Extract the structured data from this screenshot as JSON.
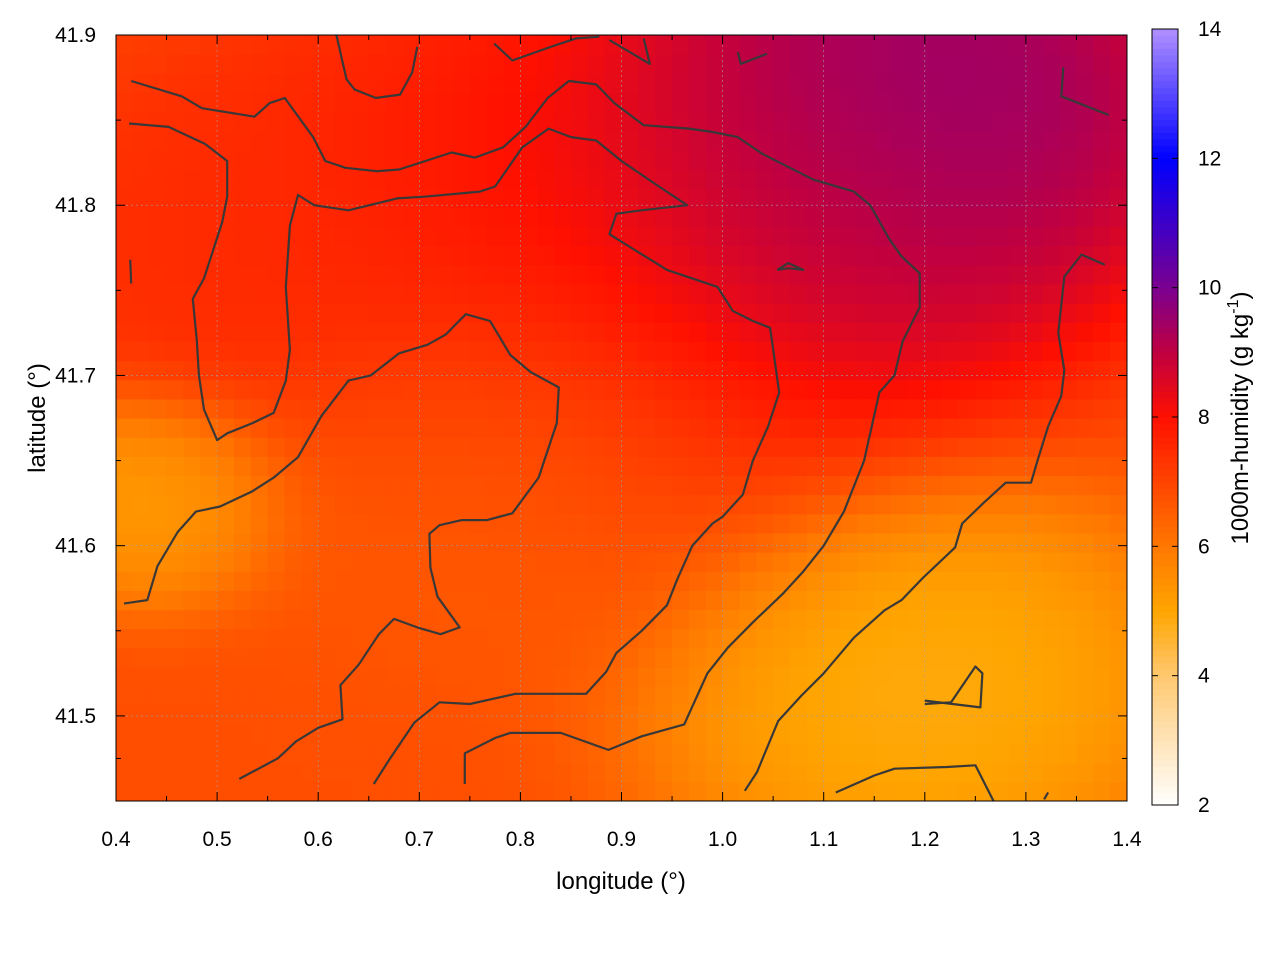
{
  "chart_data": {
    "type": "heatmap",
    "title": "",
    "xlabel": "longitude (°)",
    "ylabel": "latitude (°)",
    "colorbar_label": "1000m-humidity (g kg",
    "colorbar_label_sup": "-1",
    "colorbar_label_end": ")",
    "xlim": [
      0.4,
      1.4
    ],
    "ylim": [
      41.45,
      41.9
    ],
    "zlim": [
      2,
      14
    ],
    "x_ticks": [
      0.4,
      0.5,
      0.6,
      0.7,
      0.8,
      0.9,
      1.0,
      1.1,
      1.2,
      1.3,
      1.4
    ],
    "x_tick_labels": [
      "0.4",
      "0.5",
      "0.6",
      "0.7",
      "0.8",
      "0.9",
      "1.0",
      "1.1",
      "1.2",
      "1.3",
      "1.4"
    ],
    "y_ticks": [
      41.5,
      41.6,
      41.7,
      41.8,
      41.9
    ],
    "y_tick_labels": [
      "41.5",
      "41.6",
      "41.7",
      "41.8",
      "41.9"
    ],
    "z_ticks": [
      2,
      4,
      6,
      8,
      10,
      12,
      14
    ],
    "z_tick_labels": [
      "2",
      "4",
      "6",
      "8",
      "10",
      "12",
      "14"
    ],
    "grid": true,
    "colormap": [
      {
        "value": 2,
        "color": "#ffffff"
      },
      {
        "value": 4,
        "color": "#ffc870"
      },
      {
        "value": 5,
        "color": "#ffa500"
      },
      {
        "value": 6,
        "color": "#ff7800"
      },
      {
        "value": 7,
        "color": "#ff4400"
      },
      {
        "value": 8,
        "color": "#ff1000"
      },
      {
        "value": 9,
        "color": "#c00040"
      },
      {
        "value": 10,
        "color": "#7a0090"
      },
      {
        "value": 12,
        "color": "#0000ff"
      },
      {
        "value": 14,
        "color": "#b090ff"
      }
    ],
    "field_centers": [
      {
        "lon": 1.18,
        "lat": 41.86,
        "value": 10.0,
        "spread": 0.15
      },
      {
        "lon": 1.1,
        "lat": 41.8,
        "value": 9.2,
        "spread": 0.12
      },
      {
        "lon": 0.87,
        "lat": 41.76,
        "value": 8.2,
        "spread": 0.2
      },
      {
        "lon": 0.53,
        "lat": 41.78,
        "value": 7.5,
        "spread": 0.12
      },
      {
        "lon": 0.78,
        "lat": 41.65,
        "value": 6.3,
        "spread": 0.14
      },
      {
        "lon": 1.19,
        "lat": 41.52,
        "value": 4.6,
        "spread": 0.13
      },
      {
        "lon": 0.44,
        "lat": 41.63,
        "value": 5.0,
        "spread": 0.07
      }
    ],
    "field_base": 6.8,
    "contours": [
      {
        "level": 8,
        "points": [
          [
            0.415,
            41.873
          ],
          [
            0.465,
            41.864
          ],
          [
            0.485,
            41.857
          ],
          [
            0.537,
            41.852
          ],
          [
            0.552,
            41.86
          ],
          [
            0.567,
            41.863
          ],
          [
            0.595,
            41.84
          ],
          [
            0.607,
            41.826
          ],
          [
            0.627,
            41.822
          ],
          [
            0.658,
            41.82
          ],
          [
            0.68,
            41.821
          ],
          [
            0.732,
            41.831
          ],
          [
            0.755,
            41.828
          ],
          [
            0.783,
            41.834
          ],
          [
            0.805,
            41.846
          ],
          [
            0.827,
            41.863
          ],
          [
            0.848,
            41.873
          ],
          [
            0.875,
            41.871
          ],
          [
            0.893,
            41.86
          ],
          [
            0.922,
            41.847
          ],
          [
            0.967,
            41.845
          ],
          [
            0.99,
            41.843
          ],
          [
            1.015,
            41.84
          ],
          [
            1.04,
            41.83
          ],
          [
            1.09,
            41.815
          ],
          [
            1.13,
            41.808
          ],
          [
            1.146,
            41.8
          ],
          [
            1.165,
            41.78
          ],
          [
            1.177,
            41.77
          ],
          [
            1.195,
            41.76
          ],
          [
            1.195,
            41.74
          ],
          [
            1.178,
            41.72
          ],
          [
            1.17,
            41.7
          ],
          [
            1.155,
            41.69
          ],
          [
            1.14,
            41.65
          ],
          [
            1.12,
            41.62
          ],
          [
            1.1,
            41.6
          ],
          [
            1.08,
            41.585
          ],
          [
            1.06,
            41.572
          ],
          [
            1.03,
            41.555
          ],
          [
            1.005,
            41.54
          ],
          [
            0.985,
            41.525
          ],
          [
            0.962,
            41.495
          ],
          [
            0.92,
            41.488
          ],
          [
            0.887,
            41.48
          ],
          [
            0.84,
            41.49
          ],
          [
            0.79,
            41.49
          ],
          [
            0.775,
            41.487
          ],
          [
            0.745,
            41.478
          ],
          [
            0.745,
            41.46
          ]
        ]
      },
      {
        "level": 8,
        "points": [
          [
            0.413,
            41.848
          ],
          [
            0.452,
            41.846
          ],
          [
            0.488,
            41.836
          ],
          [
            0.51,
            41.826
          ],
          [
            0.51,
            41.805
          ],
          [
            0.505,
            41.79
          ],
          [
            0.487,
            41.757
          ],
          [
            0.476,
            41.745
          ],
          [
            0.48,
            41.72
          ],
          [
            0.482,
            41.7
          ],
          [
            0.487,
            41.68
          ],
          [
            0.5,
            41.662
          ],
          [
            0.51,
            41.666
          ],
          [
            0.535,
            41.672
          ],
          [
            0.556,
            41.678
          ],
          [
            0.568,
            41.697
          ],
          [
            0.572,
            41.715
          ],
          [
            0.568,
            41.752
          ],
          [
            0.572,
            41.788
          ],
          [
            0.58,
            41.806
          ],
          [
            0.596,
            41.8
          ],
          [
            0.63,
            41.797
          ],
          [
            0.678,
            41.804
          ],
          [
            0.705,
            41.805
          ],
          [
            0.76,
            41.808
          ],
          [
            0.775,
            41.811
          ],
          [
            0.802,
            41.834
          ],
          [
            0.828,
            41.845
          ],
          [
            0.85,
            41.84
          ],
          [
            0.875,
            41.838
          ],
          [
            0.9,
            41.826
          ],
          [
            0.932,
            41.813
          ],
          [
            0.965,
            41.8
          ],
          [
            0.92,
            41.797
          ],
          [
            0.895,
            41.795
          ],
          [
            0.888,
            41.783
          ],
          [
            0.915,
            41.773
          ],
          [
            0.937,
            41.765
          ],
          [
            0.945,
            41.762
          ],
          [
            0.97,
            41.757
          ],
          [
            0.995,
            41.752
          ],
          [
            1.01,
            41.738
          ],
          [
            1.03,
            41.732
          ],
          [
            1.047,
            41.728
          ],
          [
            1.056,
            41.69
          ],
          [
            1.045,
            41.67
          ],
          [
            1.03,
            41.65
          ],
          [
            1.02,
            41.63
          ],
          [
            1.0,
            41.617
          ],
          [
            0.99,
            41.613
          ],
          [
            0.97,
            41.6
          ],
          [
            0.955,
            41.58
          ],
          [
            0.945,
            41.565
          ],
          [
            0.92,
            41.55
          ],
          [
            0.895,
            41.537
          ],
          [
            0.885,
            41.526
          ],
          [
            0.865,
            41.513
          ],
          [
            0.83,
            41.513
          ],
          [
            0.795,
            41.513
          ],
          [
            0.75,
            41.507
          ],
          [
            0.72,
            41.508
          ],
          [
            0.695,
            41.496
          ],
          [
            0.67,
            41.474
          ],
          [
            0.655,
            41.46
          ]
        ]
      },
      {
        "level": 6,
        "points": [
          [
            0.408,
            41.566
          ],
          [
            0.431,
            41.568
          ],
          [
            0.441,
            41.588
          ],
          [
            0.461,
            41.608
          ],
          [
            0.479,
            41.62
          ],
          [
            0.503,
            41.623
          ],
          [
            0.535,
            41.632
          ],
          [
            0.556,
            41.64
          ],
          [
            0.58,
            41.652
          ],
          [
            0.603,
            41.676
          ],
          [
            0.63,
            41.697
          ],
          [
            0.652,
            41.7
          ],
          [
            0.68,
            41.713
          ],
          [
            0.708,
            41.718
          ],
          [
            0.726,
            41.724
          ],
          [
            0.746,
            41.736
          ],
          [
            0.77,
            41.732
          ],
          [
            0.79,
            41.712
          ],
          [
            0.81,
            41.702
          ],
          [
            0.838,
            41.693
          ],
          [
            0.836,
            41.672
          ],
          [
            0.818,
            41.64
          ],
          [
            0.792,
            41.619
          ],
          [
            0.767,
            41.615
          ],
          [
            0.742,
            41.615
          ],
          [
            0.72,
            41.612
          ],
          [
            0.71,
            41.607
          ],
          [
            0.711,
            41.587
          ],
          [
            0.718,
            41.57
          ],
          [
            0.74,
            41.552
          ],
          [
            0.721,
            41.548
          ],
          [
            0.698,
            41.552
          ],
          [
            0.675,
            41.557
          ],
          [
            0.66,
            41.548
          ],
          [
            0.64,
            41.53
          ],
          [
            0.622,
            41.518
          ],
          [
            0.624,
            41.498
          ],
          [
            0.6,
            41.493
          ],
          [
            0.578,
            41.485
          ],
          [
            0.56,
            41.475
          ],
          [
            0.522,
            41.463
          ]
        ]
      },
      {
        "level": 6,
        "points": [
          [
            1.022,
            41.456
          ],
          [
            1.034,
            41.467
          ],
          [
            1.055,
            41.497
          ],
          [
            1.078,
            41.512
          ],
          [
            1.1,
            41.525
          ],
          [
            1.13,
            41.546
          ],
          [
            1.16,
            41.562
          ],
          [
            1.177,
            41.568
          ],
          [
            1.198,
            41.581
          ],
          [
            1.23,
            41.599
          ],
          [
            1.237,
            41.613
          ],
          [
            1.258,
            41.625
          ],
          [
            1.28,
            41.637
          ],
          [
            1.305,
            41.637
          ],
          [
            1.312,
            41.651
          ],
          [
            1.322,
            41.67
          ],
          [
            1.335,
            41.688
          ],
          [
            1.338,
            41.703
          ],
          [
            1.332,
            41.725
          ],
          [
            1.338,
            41.758
          ],
          [
            1.355,
            41.771
          ],
          [
            1.378,
            41.765
          ]
        ]
      },
      {
        "level": 6,
        "points": [
          [
            0.618,
            41.9
          ],
          [
            0.628,
            41.874
          ],
          [
            0.636,
            41.868
          ],
          [
            0.657,
            41.863
          ],
          [
            0.681,
            41.865
          ],
          [
            0.693,
            41.878
          ],
          [
            0.698,
            41.893
          ]
        ]
      },
      {
        "level": 6,
        "points": [
          [
            1.112,
            41.455
          ],
          [
            1.135,
            41.461
          ],
          [
            1.15,
            41.465
          ],
          [
            1.17,
            41.469
          ],
          [
            1.222,
            41.47
          ],
          [
            1.25,
            41.471
          ],
          [
            1.268,
            41.45
          ]
        ]
      },
      {
        "level": 6,
        "points": [
          [
            1.2,
            41.507
          ],
          [
            1.226,
            41.508
          ],
          [
            1.25,
            41.529
          ],
          [
            1.257,
            41.525
          ],
          [
            1.255,
            41.505
          ],
          [
            1.2,
            41.509
          ]
        ]
      },
      {
        "level": 10,
        "points": [
          [
            1.054,
            41.762
          ],
          [
            1.065,
            41.763
          ],
          [
            1.08,
            41.762
          ],
          [
            1.065,
            41.766
          ],
          [
            1.054,
            41.762
          ]
        ]
      },
      {
        "level": 10,
        "points": [
          [
            1.337,
            41.881
          ],
          [
            1.335,
            41.864
          ],
          [
            1.382,
            41.853
          ]
        ]
      },
      {
        "level": 10,
        "points": [
          [
            0.774,
            41.895
          ],
          [
            0.792,
            41.885
          ],
          [
            0.83,
            41.893
          ],
          [
            0.855,
            41.898
          ],
          [
            0.878,
            41.899
          ]
        ]
      },
      {
        "level": 10,
        "points": [
          [
            0.922,
            41.898
          ],
          [
            0.928,
            41.883
          ],
          [
            0.888,
            41.897
          ]
        ]
      },
      {
        "level": 10,
        "points": [
          [
            1.015,
            41.89
          ],
          [
            1.018,
            41.883
          ],
          [
            1.044,
            41.889
          ]
        ]
      },
      {
        "level": 6,
        "points": [
          [
            0.415,
            41.754
          ],
          [
            0.414,
            41.768
          ]
        ]
      },
      {
        "level": 6,
        "points": [
          [
            1.318,
            41.451
          ],
          [
            1.322,
            41.455
          ]
        ]
      }
    ]
  }
}
